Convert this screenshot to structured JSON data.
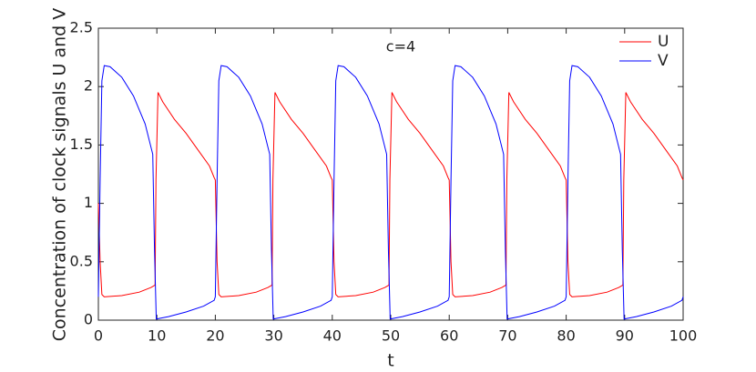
{
  "chart_data": {
    "type": "line",
    "ylabel": "Concentration of clock signals U and V",
    "xlabel": "t",
    "annotation": "c=4",
    "legend": "upper right",
    "grid": false,
    "xlim": [
      0,
      100
    ],
    "ylim": [
      0,
      2.5
    ],
    "xticks": [
      0,
      10,
      20,
      30,
      40,
      50,
      60,
      70,
      80,
      90,
      100
    ],
    "yticks": [
      0,
      0.5,
      1,
      1.5,
      2,
      2.5
    ],
    "series": [
      {
        "name": "U",
        "color": "#ff0000",
        "x": [
          0,
          0.3,
          0.6,
          1,
          4,
          7,
          9,
          9.7,
          9.85,
          10.2,
          11,
          13,
          15,
          17,
          19,
          19.8,
          20,
          20.3,
          20.6,
          21,
          24,
          27,
          29,
          29.7,
          29.85,
          30.2,
          31,
          33,
          35,
          37,
          39,
          39.8,
          40,
          40.3,
          40.6,
          41,
          44,
          47,
          49,
          49.7,
          49.85,
          50.2,
          51,
          53,
          55,
          57,
          59,
          59.8,
          60,
          60.3,
          60.6,
          61,
          64,
          67,
          69,
          69.7,
          69.85,
          70.2,
          71,
          73,
          75,
          77,
          79,
          79.8,
          80,
          80.3,
          80.6,
          81,
          84,
          87,
          89,
          89.7,
          89.85,
          90.2,
          91,
          93,
          95,
          97,
          99,
          99.8,
          100
        ],
        "values": [
          1.0,
          0.5,
          0.22,
          0.2,
          0.21,
          0.24,
          0.28,
          0.3,
          1.2,
          1.95,
          1.87,
          1.72,
          1.6,
          1.46,
          1.32,
          1.22,
          1.2,
          0.5,
          0.22,
          0.2,
          0.21,
          0.24,
          0.28,
          0.3,
          1.2,
          1.95,
          1.87,
          1.72,
          1.6,
          1.46,
          1.32,
          1.22,
          1.2,
          0.5,
          0.22,
          0.2,
          0.21,
          0.24,
          0.28,
          0.3,
          1.2,
          1.95,
          1.87,
          1.72,
          1.6,
          1.46,
          1.32,
          1.22,
          1.2,
          0.5,
          0.22,
          0.2,
          0.21,
          0.24,
          0.28,
          0.3,
          1.2,
          1.95,
          1.87,
          1.72,
          1.6,
          1.46,
          1.32,
          1.22,
          1.2,
          0.5,
          0.22,
          0.2,
          0.21,
          0.24,
          0.28,
          0.3,
          1.2,
          1.95,
          1.87,
          1.72,
          1.6,
          1.46,
          1.32,
          1.22,
          1.2
        ]
      },
      {
        "name": "V",
        "color": "#0000ff",
        "x": [
          0,
          0.3,
          0.6,
          1,
          2,
          4,
          6,
          8,
          9.3,
          9.6,
          9.9,
          12,
          15,
          18,
          19.8,
          20,
          20.3,
          20.6,
          21,
          22,
          24,
          26,
          28,
          29.3,
          29.6,
          29.9,
          32,
          35,
          38,
          39.8,
          40,
          40.3,
          40.6,
          41,
          42,
          44,
          46,
          48,
          49.3,
          49.6,
          49.9,
          52,
          55,
          58,
          59.8,
          60,
          60.3,
          60.6,
          61,
          62,
          64,
          66,
          68,
          69.3,
          69.6,
          69.9,
          72,
          75,
          78,
          79.8,
          80,
          80.3,
          80.6,
          81,
          82,
          84,
          86,
          88,
          89.3,
          89.6,
          89.9,
          92,
          95,
          98,
          99.8,
          100
        ],
        "values": [
          0.2,
          1.2,
          2.05,
          2.18,
          2.17,
          2.08,
          1.92,
          1.68,
          1.42,
          0.6,
          0.01,
          0.03,
          0.07,
          0.12,
          0.17,
          0.2,
          1.2,
          2.05,
          2.18,
          2.17,
          2.08,
          1.92,
          1.68,
          1.42,
          0.6,
          0.01,
          0.03,
          0.07,
          0.12,
          0.17,
          0.2,
          1.2,
          2.05,
          2.18,
          2.17,
          2.08,
          1.92,
          1.68,
          1.42,
          0.6,
          0.01,
          0.03,
          0.07,
          0.12,
          0.17,
          0.2,
          1.2,
          2.05,
          2.18,
          2.17,
          2.08,
          1.92,
          1.68,
          1.42,
          0.6,
          0.01,
          0.03,
          0.07,
          0.12,
          0.17,
          0.2,
          1.2,
          2.05,
          2.18,
          2.17,
          2.08,
          1.92,
          1.68,
          1.42,
          0.6,
          0.01,
          0.03,
          0.07,
          0.12,
          0.17,
          0.2
        ]
      }
    ]
  }
}
